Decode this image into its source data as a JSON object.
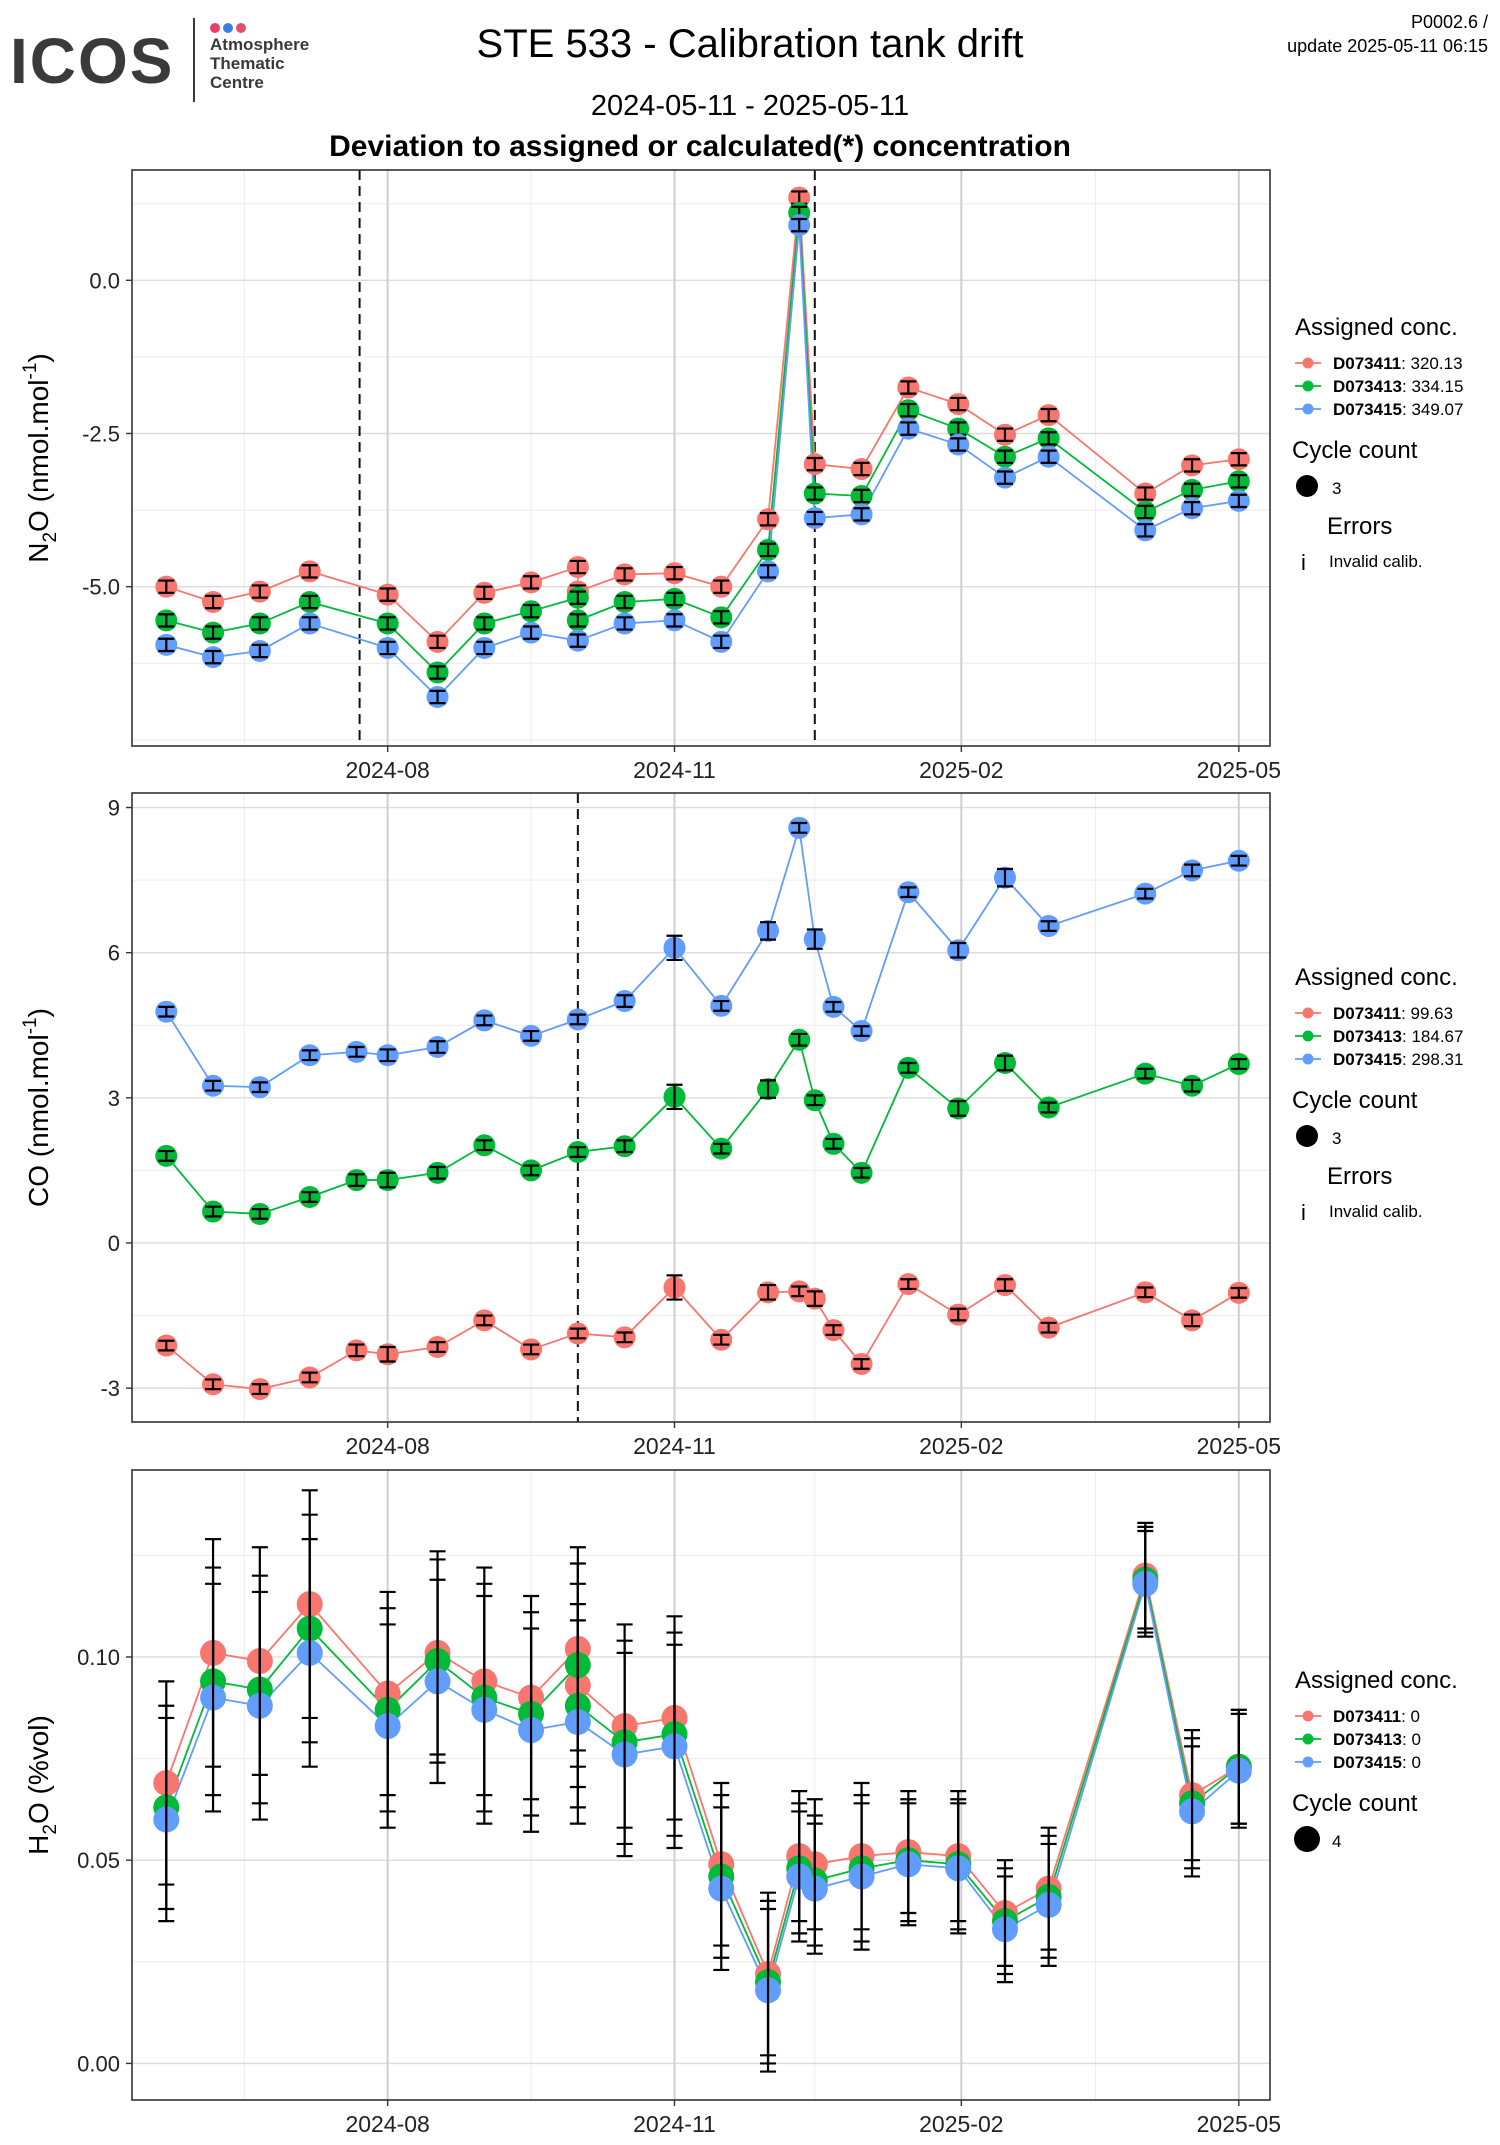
{
  "header": {
    "logo_text": "ICOS",
    "logo_subtitle_lines": [
      "Atmosphere",
      "Thematic",
      "Centre"
    ],
    "title": "STE 533 - Calibration tank drift",
    "date_range": "2024-05-11 - 2025-05-11",
    "subtitle": "Deviation to assigned or calculated(*) concentration",
    "version_line1": "P0002.6 /",
    "version_line2": "update  2025-05-11 06:15"
  },
  "colors": {
    "D073411": "#F8766D",
    "D073413": "#00BA38",
    "D073415": "#619CFF",
    "logo_dots": [
      "#e83e6c",
      "#3d7fe0",
      "#e0506a"
    ]
  },
  "legend_common": {
    "assigned_title": "Assigned conc.",
    "cycle_title": "Cycle count",
    "errors_title": "Errors",
    "errors_symbol": "i",
    "errors_label": "Invalid calib."
  },
  "chart_data": [
    {
      "type": "line",
      "ylabel": "N2O (nmol.mol-1)",
      "ylabel_main": "N",
      "ylabel_sub": "2",
      "ylabel_rest": "O (nmol.mol",
      "ylabel_sup": "-1",
      "ylabel_end": ")",
      "ylim": [
        -7.6,
        1.8
      ],
      "yticks": [
        0.0,
        -2.5,
        -5.0
      ],
      "ytick_labels": [
        "0.0",
        "-2.5",
        "-5.0"
      ],
      "xticks": [
        "2024-08-01",
        "2024-11-01",
        "2025-02-01",
        "2025-05-01"
      ],
      "xtick_labels": [
        "2024-08",
        "2024-11",
        "2025-02",
        "2025-05"
      ],
      "xlim": [
        "2024-05-11",
        "2025-05-11"
      ],
      "vlines": [
        "2024-07-23",
        "2024-12-16"
      ],
      "grid": true,
      "legend_position": "right",
      "series": [
        {
          "name": "D073411",
          "value_label": "320.13",
          "color": "#F8766D",
          "err": 0.1,
          "dates": [
            "2024-05-22",
            "2024-06-06",
            "2024-06-21",
            "2024-07-07",
            "2024-08-01",
            "2024-08-17",
            "2024-09-01",
            "2024-09-16",
            "2024-10-01",
            "2024-10-01",
            "2024-10-16",
            "2024-11-01",
            "2024-11-16",
            "2024-12-01",
            "2024-12-11",
            "2024-12-16",
            "2024-12-31",
            "2025-01-15",
            "2025-01-31",
            "2025-02-15",
            "2025-03-01",
            "2025-04-01",
            "2025-04-16",
            "2025-05-01"
          ],
          "values": [
            -5.0,
            -5.25,
            -5.08,
            -4.75,
            -5.13,
            -5.9,
            -5.1,
            -4.93,
            -4.68,
            -5.08,
            -4.8,
            -4.78,
            -5.0,
            -3.9,
            1.35,
            -3.0,
            -3.08,
            -1.75,
            -2.02,
            -2.52,
            -2.2,
            -3.48,
            -3.02,
            -2.92
          ]
        },
        {
          "name": "D073413",
          "value_label": "334.15",
          "color": "#00BA38",
          "err": 0.1,
          "dates": [
            "2024-05-22",
            "2024-06-06",
            "2024-06-21",
            "2024-07-07",
            "2024-08-01",
            "2024-08-17",
            "2024-09-01",
            "2024-09-16",
            "2024-10-01",
            "2024-10-01",
            "2024-10-16",
            "2024-11-01",
            "2024-11-16",
            "2024-12-01",
            "2024-12-11",
            "2024-12-16",
            "2024-12-31",
            "2025-01-15",
            "2025-01-31",
            "2025-02-15",
            "2025-03-01",
            "2025-04-01",
            "2025-04-16",
            "2025-05-01"
          ],
          "values": [
            -5.55,
            -5.75,
            -5.6,
            -5.25,
            -5.6,
            -6.4,
            -5.6,
            -5.4,
            -5.18,
            -5.55,
            -5.25,
            -5.2,
            -5.5,
            -4.4,
            1.1,
            -3.48,
            -3.52,
            -2.12,
            -2.42,
            -2.88,
            -2.58,
            -3.78,
            -3.42,
            -3.28
          ]
        },
        {
          "name": "D073415",
          "value_label": "349.07",
          "color": "#619CFF",
          "err": 0.1,
          "dates": [
            "2024-05-22",
            "2024-06-06",
            "2024-06-21",
            "2024-07-07",
            "2024-08-01",
            "2024-08-17",
            "2024-09-01",
            "2024-09-16",
            "2024-10-01",
            "2024-10-16",
            "2024-11-01",
            "2024-11-16",
            "2024-12-01",
            "2024-12-11",
            "2024-12-16",
            "2024-12-31",
            "2025-01-15",
            "2025-01-31",
            "2025-02-15",
            "2025-03-01",
            "2025-04-01",
            "2025-04-16",
            "2025-05-01"
          ],
          "values": [
            -5.95,
            -6.15,
            -6.05,
            -5.6,
            -6.0,
            -6.8,
            -6.0,
            -5.75,
            -5.88,
            -5.6,
            -5.55,
            -5.9,
            -4.75,
            0.9,
            -3.88,
            -3.82,
            -2.42,
            -2.68,
            -3.22,
            -2.88,
            -4.08,
            -3.72,
            -3.6
          ]
        }
      ],
      "legend_cycle_value": "3"
    },
    {
      "type": "line",
      "ylabel": "CO (nmol.mol-1)",
      "ylabel_main": "CO (nmol.mol",
      "ylabel_sub": "",
      "ylabel_rest": "",
      "ylabel_sup": "-1",
      "ylabel_end": ")",
      "ylim": [
        -3.7,
        9.3
      ],
      "yticks": [
        9,
        6,
        3,
        0,
        -3
      ],
      "ytick_labels": [
        "9",
        "6",
        "3",
        "0",
        "-3"
      ],
      "xticks": [
        "2024-08-01",
        "2024-11-01",
        "2025-02-01",
        "2025-05-01"
      ],
      "xtick_labels": [
        "2024-08",
        "2024-11",
        "2025-02",
        "2025-05"
      ],
      "xlim": [
        "2024-05-11",
        "2025-05-11"
      ],
      "vlines": [
        "2024-10-01"
      ],
      "grid": true,
      "legend_position": "right",
      "series": [
        {
          "name": "D073411",
          "value_label": "99.63",
          "color": "#F8766D",
          "dates": [
            "2024-05-22",
            "2024-06-06",
            "2024-06-21",
            "2024-07-07",
            "2024-07-22",
            "2024-08-01",
            "2024-08-17",
            "2024-09-01",
            "2024-09-16",
            "2024-10-01",
            "2024-10-16",
            "2024-11-01",
            "2024-11-16",
            "2024-12-01",
            "2024-12-11",
            "2024-12-16",
            "2024-12-22",
            "2024-12-31",
            "2025-01-15",
            "2025-01-31",
            "2025-02-15",
            "2025-03-01",
            "2025-04-01",
            "2025-04-16",
            "2025-05-01"
          ],
          "values": [
            -2.12,
            -2.92,
            -3.02,
            -2.78,
            -2.22,
            -2.3,
            -2.15,
            -1.6,
            -2.2,
            -1.87,
            -1.95,
            -0.92,
            -2.0,
            -1.02,
            -1.0,
            -1.15,
            -1.8,
            -2.5,
            -0.85,
            -1.48,
            -0.87,
            -1.75,
            -1.02,
            -1.6,
            -1.03
          ],
          "err": [
            0.1,
            0.1,
            0.1,
            0.1,
            0.12,
            0.15,
            0.1,
            0.1,
            0.1,
            0.1,
            0.1,
            0.25,
            0.1,
            0.15,
            0.1,
            0.15,
            0.1,
            0.1,
            0.1,
            0.12,
            0.12,
            0.1,
            0.1,
            0.12,
            0.1
          ]
        },
        {
          "name": "D073413",
          "value_label": "184.67",
          "color": "#00BA38",
          "dates": [
            "2024-05-22",
            "2024-06-06",
            "2024-06-21",
            "2024-07-07",
            "2024-07-22",
            "2024-08-01",
            "2024-08-17",
            "2024-09-01",
            "2024-09-16",
            "2024-10-01",
            "2024-10-16",
            "2024-11-01",
            "2024-11-16",
            "2024-12-01",
            "2024-12-11",
            "2024-12-16",
            "2024-12-22",
            "2024-12-31",
            "2025-01-15",
            "2025-01-31",
            "2025-02-15",
            "2025-03-01",
            "2025-04-01",
            "2025-04-16",
            "2025-05-01"
          ],
          "values": [
            1.8,
            0.65,
            0.6,
            0.95,
            1.3,
            1.3,
            1.45,
            2.02,
            1.5,
            1.88,
            2.0,
            3.02,
            1.95,
            3.18,
            4.2,
            2.95,
            2.05,
            1.45,
            3.62,
            2.78,
            3.72,
            2.8,
            3.5,
            3.25,
            3.7
          ],
          "err": [
            0.1,
            0.1,
            0.1,
            0.1,
            0.12,
            0.15,
            0.12,
            0.1,
            0.1,
            0.1,
            0.12,
            0.25,
            0.1,
            0.18,
            0.12,
            0.1,
            0.1,
            0.1,
            0.1,
            0.15,
            0.15,
            0.1,
            0.1,
            0.12,
            0.1
          ]
        },
        {
          "name": "D073415",
          "value_label": "298.31",
          "color": "#619CFF",
          "dates": [
            "2024-05-22",
            "2024-06-06",
            "2024-06-21",
            "2024-07-07",
            "2024-07-22",
            "2024-08-01",
            "2024-08-17",
            "2024-09-01",
            "2024-09-16",
            "2024-10-01",
            "2024-10-16",
            "2024-11-01",
            "2024-11-16",
            "2024-12-01",
            "2024-12-11",
            "2024-12-16",
            "2024-12-22",
            "2024-12-31",
            "2025-01-15",
            "2025-01-31",
            "2025-02-15",
            "2025-03-01",
            "2025-04-01",
            "2025-04-16",
            "2025-05-01"
          ],
          "values": [
            4.78,
            3.25,
            3.22,
            3.88,
            3.95,
            3.88,
            4.05,
            4.6,
            4.28,
            4.62,
            5.0,
            6.1,
            4.9,
            6.45,
            8.58,
            6.28,
            4.88,
            4.38,
            7.25,
            6.05,
            7.55,
            6.55,
            7.22,
            7.7,
            7.9
          ],
          "err": [
            0.1,
            0.1,
            0.1,
            0.1,
            0.1,
            0.12,
            0.12,
            0.1,
            0.1,
            0.1,
            0.12,
            0.25,
            0.1,
            0.18,
            0.1,
            0.2,
            0.1,
            0.1,
            0.1,
            0.15,
            0.18,
            0.1,
            0.1,
            0.12,
            0.1
          ]
        }
      ],
      "legend_cycle_value": "3"
    },
    {
      "type": "line",
      "ylabel": "H2O (%vol)",
      "ylabel_main": "H",
      "ylabel_sub": "2",
      "ylabel_rest": "O (%vol)",
      "ylabel_sup": "",
      "ylabel_end": "",
      "ylim": [
        -0.009,
        0.146
      ],
      "yticks": [
        0.1,
        0.05,
        0.0
      ],
      "ytick_labels": [
        "0.10",
        "0.05",
        "0.00"
      ],
      "xticks": [
        "2024-08-01",
        "2024-11-01",
        "2025-02-01",
        "2025-05-01"
      ],
      "xtick_labels": [
        "2024-08",
        "2024-11",
        "2025-02",
        "2025-05"
      ],
      "xlim": [
        "2024-05-11",
        "2025-05-11"
      ],
      "vlines": [],
      "grid": true,
      "legend_position": "right",
      "series": [
        {
          "name": "D073411",
          "value_label": "0",
          "color": "#F8766D",
          "dates": [
            "2024-05-22",
            "2024-06-06",
            "2024-06-21",
            "2024-07-07",
            "2024-08-01",
            "2024-08-17",
            "2024-09-01",
            "2024-09-16",
            "2024-10-01",
            "2024-10-01",
            "2024-10-16",
            "2024-11-01",
            "2024-11-16",
            "2024-12-01",
            "2024-12-11",
            "2024-12-16",
            "2024-12-31",
            "2025-01-15",
            "2025-01-31",
            "2025-02-15",
            "2025-03-01",
            "2025-04-01",
            "2025-04-16",
            "2025-05-01"
          ],
          "values": [
            0.069,
            0.101,
            0.099,
            0.113,
            0.091,
            0.101,
            0.094,
            0.09,
            0.102,
            0.093,
            0.083,
            0.085,
            0.049,
            0.022,
            0.051,
            0.049,
            0.051,
            0.052,
            0.051,
            0.037,
            0.043,
            0.12,
            0.066,
            0.073
          ],
          "err": [
            0.025,
            0.028,
            0.028,
            0.028,
            0.025,
            0.025,
            0.028,
            0.025,
            0.025,
            0.025,
            0.025,
            0.025,
            0.02,
            0.02,
            0.016,
            0.016,
            0.018,
            0.015,
            0.016,
            0.013,
            0.015,
            0.013,
            0.016,
            0.014
          ]
        },
        {
          "name": "D073413",
          "value_label": "0",
          "color": "#00BA38",
          "dates": [
            "2024-05-22",
            "2024-06-06",
            "2024-06-21",
            "2024-07-07",
            "2024-08-01",
            "2024-08-17",
            "2024-09-01",
            "2024-09-16",
            "2024-10-01",
            "2024-10-01",
            "2024-10-16",
            "2024-11-01",
            "2024-11-16",
            "2024-12-01",
            "2024-12-11",
            "2024-12-16",
            "2024-12-31",
            "2025-01-15",
            "2025-01-31",
            "2025-02-15",
            "2025-03-01",
            "2025-04-01",
            "2025-04-16",
            "2025-05-01"
          ],
          "values": [
            0.063,
            0.094,
            0.092,
            0.107,
            0.087,
            0.099,
            0.09,
            0.086,
            0.098,
            0.088,
            0.079,
            0.081,
            0.046,
            0.02,
            0.048,
            0.045,
            0.048,
            0.05,
            0.049,
            0.035,
            0.041,
            0.119,
            0.064,
            0.073
          ],
          "err": [
            0.025,
            0.028,
            0.028,
            0.028,
            0.025,
            0.025,
            0.028,
            0.025,
            0.025,
            0.025,
            0.025,
            0.025,
            0.02,
            0.02,
            0.016,
            0.016,
            0.018,
            0.015,
            0.016,
            0.013,
            0.015,
            0.013,
            0.016,
            0.014
          ]
        },
        {
          "name": "D073415",
          "value_label": "0",
          "color": "#619CFF",
          "dates": [
            "2024-05-22",
            "2024-06-06",
            "2024-06-21",
            "2024-07-07",
            "2024-08-01",
            "2024-08-17",
            "2024-09-01",
            "2024-09-16",
            "2024-10-01",
            "2024-10-16",
            "2024-11-01",
            "2024-11-16",
            "2024-12-01",
            "2024-12-11",
            "2024-12-16",
            "2024-12-31",
            "2025-01-15",
            "2025-01-31",
            "2025-02-15",
            "2025-03-01",
            "2025-04-01",
            "2025-04-16",
            "2025-05-01"
          ],
          "values": [
            0.06,
            0.09,
            0.088,
            0.101,
            0.083,
            0.094,
            0.087,
            0.082,
            0.084,
            0.076,
            0.078,
            0.043,
            0.018,
            0.046,
            0.043,
            0.046,
            0.049,
            0.048,
            0.033,
            0.039,
            0.118,
            0.062,
            0.072
          ],
          "err": [
            0.025,
            0.028,
            0.028,
            0.028,
            0.025,
            0.025,
            0.028,
            0.025,
            0.025,
            0.025,
            0.025,
            0.02,
            0.02,
            0.016,
            0.016,
            0.018,
            0.015,
            0.016,
            0.013,
            0.015,
            0.013,
            0.016,
            0.014
          ]
        }
      ],
      "legend_cycle_value": "4"
    }
  ]
}
